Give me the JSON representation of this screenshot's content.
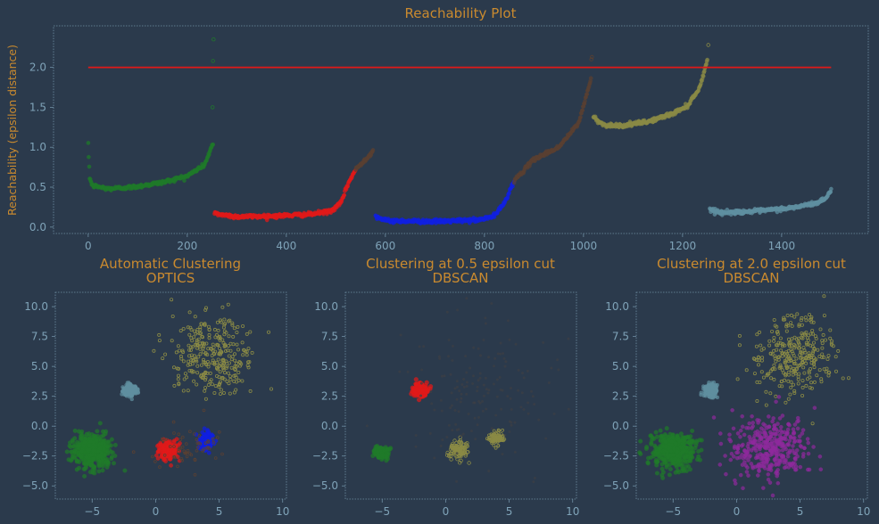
{
  "colors": {
    "background": "#2b3a4c",
    "text_orange": "#c98a2f",
    "tick": "#7fa3b8",
    "green": "#1f7a2a",
    "red": "#e01919",
    "blue": "#1020e0",
    "brown": "#5a4032",
    "olive": "#8a8a45",
    "teal": "#5f8fa0",
    "purple": "#8e2a9c",
    "threshold": "#e01919"
  },
  "chart_data": [
    {
      "id": "reachability",
      "type": "scatter",
      "title": "Reachability Plot",
      "xlabel": "",
      "ylabel": "Reachability (epsilon distance)",
      "xlim": [
        -70,
        1575
      ],
      "ylim": [
        -0.08,
        2.52
      ],
      "xticks": [
        0,
        200,
        400,
        600,
        800,
        1000,
        1200,
        1400
      ],
      "yticks": [
        0.0,
        0.5,
        1.0,
        1.5,
        2.0
      ],
      "xtick_labels": [
        "0",
        "200",
        "400",
        "600",
        "800",
        "1000",
        "1200",
        "1400"
      ],
      "ytick_labels": [
        "0.0",
        "0.5",
        "1.0",
        "1.5",
        "2.0"
      ],
      "threshold": {
        "y": 2.0,
        "x_start": 0,
        "x_end": 1500
      },
      "grid": false,
      "series": [
        {
          "color": "#1f7a2a",
          "x_start": 0,
          "x_end": 252,
          "profile": [
            [
              0,
              1.02
            ],
            [
              3,
              0.62
            ],
            [
              8,
              0.52
            ],
            [
              40,
              0.48
            ],
            [
              90,
              0.5
            ],
            [
              150,
              0.56
            ],
            [
              200,
              0.64
            ],
            [
              235,
              0.78
            ],
            [
              250,
              1.02
            ]
          ],
          "spikes": [
            [
              251,
              1.5
            ],
            [
              252,
              2.08
            ],
            [
              253,
              2.35
            ]
          ]
        },
        {
          "color": "#e01919",
          "x_start": 255,
          "x_end": 540,
          "profile": [
            [
              255,
              0.17
            ],
            [
              300,
              0.13
            ],
            [
              380,
              0.14
            ],
            [
              450,
              0.16
            ],
            [
              490,
              0.2
            ],
            [
              510,
              0.3
            ],
            [
              525,
              0.55
            ],
            [
              540,
              0.72
            ]
          ]
        },
        {
          "color": "#5a4032",
          "x_start": 540,
          "x_end": 575,
          "profile": [
            [
              540,
              0.72
            ],
            [
              575,
              0.95
            ]
          ]
        },
        {
          "color": "#1020e0",
          "x_start": 580,
          "x_end": 860,
          "profile": [
            [
              580,
              0.14
            ],
            [
              600,
              0.08
            ],
            [
              700,
              0.07
            ],
            [
              790,
              0.09
            ],
            [
              820,
              0.14
            ],
            [
              840,
              0.3
            ],
            [
              860,
              0.58
            ]
          ]
        },
        {
          "color": "#5a4032",
          "x_start": 860,
          "x_end": 1015,
          "profile": [
            [
              860,
              0.58
            ],
            [
              900,
              0.85
            ],
            [
              950,
              1.0
            ],
            [
              990,
              1.3
            ],
            [
              1015,
              1.85
            ]
          ],
          "spikes": [
            [
              1016,
              2.1
            ],
            [
              1017,
              2.13
            ]
          ]
        },
        {
          "color": "#8a8a45",
          "x_start": 1020,
          "x_end": 1250,
          "profile": [
            [
              1020,
              1.38
            ],
            [
              1040,
              1.28
            ],
            [
              1080,
              1.27
            ],
            [
              1130,
              1.32
            ],
            [
              1180,
              1.42
            ],
            [
              1210,
              1.52
            ],
            [
              1235,
              1.75
            ],
            [
              1250,
              2.1
            ]
          ],
          "spikes": [
            [
              1252,
              2.28
            ]
          ]
        },
        {
          "color": "#5f8fa0",
          "x_start": 1255,
          "x_end": 1500,
          "profile": [
            [
              1255,
              0.22
            ],
            [
              1280,
              0.18
            ],
            [
              1350,
              0.2
            ],
            [
              1420,
              0.24
            ],
            [
              1470,
              0.3
            ],
            [
              1490,
              0.36
            ],
            [
              1500,
              0.48
            ]
          ]
        }
      ]
    },
    {
      "id": "optics",
      "type": "scatter",
      "title": "Automatic Clustering\nOPTICS",
      "title_lines": [
        "Automatic Clustering",
        "OPTICS"
      ],
      "xlim": [
        -7.9,
        10.3
      ],
      "ylim": [
        -6.1,
        11.2
      ],
      "xticks": [
        -5,
        0,
        5,
        10
      ],
      "yticks": [
        -5.0,
        -2.5,
        0.0,
        2.5,
        5.0,
        7.5,
        10.0
      ],
      "xtick_labels": [
        "−5",
        "0",
        "5",
        "10"
      ],
      "ytick_labels": [
        "−5.0",
        "−2.5",
        "0.0",
        "2.5",
        "5.0",
        "7.5",
        "10.0"
      ],
      "clusters": [
        {
          "color": "#1f7a2a",
          "center": [
            -5.0,
            -2.0
          ],
          "spread": [
            0.75,
            0.7
          ],
          "count": 500,
          "size": 2.3
        },
        {
          "color": "#e01919",
          "center": [
            1.0,
            -2.0
          ],
          "spread": [
            0.35,
            0.4
          ],
          "count": 180,
          "size": 2.2
        },
        {
          "color": "#1020e0",
          "center": [
            4.0,
            -1.2
          ],
          "spread": [
            0.28,
            0.35
          ],
          "count": 120,
          "size": 2.2
        },
        {
          "color": "#5f8fa0",
          "center": [
            -2.0,
            3.0
          ],
          "spread": [
            0.25,
            0.25
          ],
          "count": 200,
          "size": 2
        },
        {
          "color": "#8a8a45",
          "center": [
            4.5,
            6.0
          ],
          "spread": [
            1.6,
            1.6
          ],
          "count": 300,
          "size": 1.6,
          "hollow": true
        },
        {
          "color": "#5a4032",
          "center": [
            2.5,
            -2.0
          ],
          "spread": [
            1.6,
            1.2
          ],
          "count": 60,
          "size": 1.4,
          "hollow": true
        }
      ]
    },
    {
      "id": "dbscan05",
      "type": "scatter",
      "title": "Clustering at 0.5 epsilon cut\nDBSCAN",
      "title_lines": [
        "Clustering at 0.5 epsilon cut",
        "DBSCAN"
      ],
      "xlim": [
        -7.9,
        10.3
      ],
      "ylim": [
        -6.1,
        11.2
      ],
      "xticks": [
        -5,
        0,
        5,
        10
      ],
      "yticks": [
        -5.0,
        -2.5,
        0.0,
        2.5,
        5.0,
        7.5,
        10.0
      ],
      "xtick_labels": [
        "−5",
        "0",
        "5",
        "10"
      ],
      "ytick_labels": [
        "−5.0",
        "−2.5",
        "0.0",
        "2.5",
        "5.0",
        "7.5",
        "10.0"
      ],
      "clusters": [
        {
          "color": "#1f7a2a",
          "center": [
            -5.0,
            -2.2
          ],
          "spread": [
            0.28,
            0.25
          ],
          "count": 120,
          "size": 2.4
        },
        {
          "color": "#e01919",
          "center": [
            -2.0,
            3.0
          ],
          "spread": [
            0.28,
            0.25
          ],
          "count": 220,
          "size": 2.4
        },
        {
          "color": "#8a8a45",
          "center": [
            1.0,
            -2.0
          ],
          "spread": [
            0.35,
            0.35
          ],
          "count": 130,
          "size": 1.8,
          "hollow": true
        },
        {
          "color": "#8a8a45",
          "center": [
            4.0,
            -1.0
          ],
          "spread": [
            0.3,
            0.3
          ],
          "count": 90,
          "size": 1.5,
          "hollow": true
        },
        {
          "color": "#3d3f45",
          "center": [
            2.5,
            3.0
          ],
          "spread": [
            2.8,
            3.5
          ],
          "count": 160,
          "size": 1.3
        }
      ]
    },
    {
      "id": "dbscan20",
      "type": "scatter",
      "title": "Clustering at 2.0 epsilon cut\nDBSCAN",
      "title_lines": [
        "Clustering at 2.0 epsilon cut",
        "DBSCAN"
      ],
      "xlim": [
        -7.9,
        10.3
      ],
      "ylim": [
        -6.1,
        11.2
      ],
      "xticks": [
        -5,
        0,
        5,
        10
      ],
      "yticks": [
        -5.0,
        -2.5,
        0.0,
        2.5,
        5.0,
        7.5,
        10.0
      ],
      "xtick_labels": [
        "−5",
        "0",
        "5",
        "10"
      ],
      "ytick_labels": [
        "−5.0",
        "−2.5",
        "0.0",
        "2.5",
        "5.0",
        "7.5",
        "10.0"
      ],
      "clusters": [
        {
          "color": "#1f7a2a",
          "center": [
            -5.0,
            -2.0
          ],
          "spread": [
            0.75,
            0.7
          ],
          "count": 500,
          "size": 2.3
        },
        {
          "color": "#5f8fa0",
          "center": [
            -2.0,
            3.0
          ],
          "spread": [
            0.25,
            0.25
          ],
          "count": 200,
          "size": 2
        },
        {
          "color": "#8a8a45",
          "center": [
            4.5,
            6.0
          ],
          "spread": [
            1.6,
            1.6
          ],
          "count": 300,
          "size": 1.6,
          "hollow": true
        },
        {
          "color": "#8e2a9c",
          "center": [
            2.5,
            -1.8
          ],
          "spread": [
            1.5,
            1.3
          ],
          "count": 380,
          "size": 2.1
        }
      ]
    }
  ]
}
